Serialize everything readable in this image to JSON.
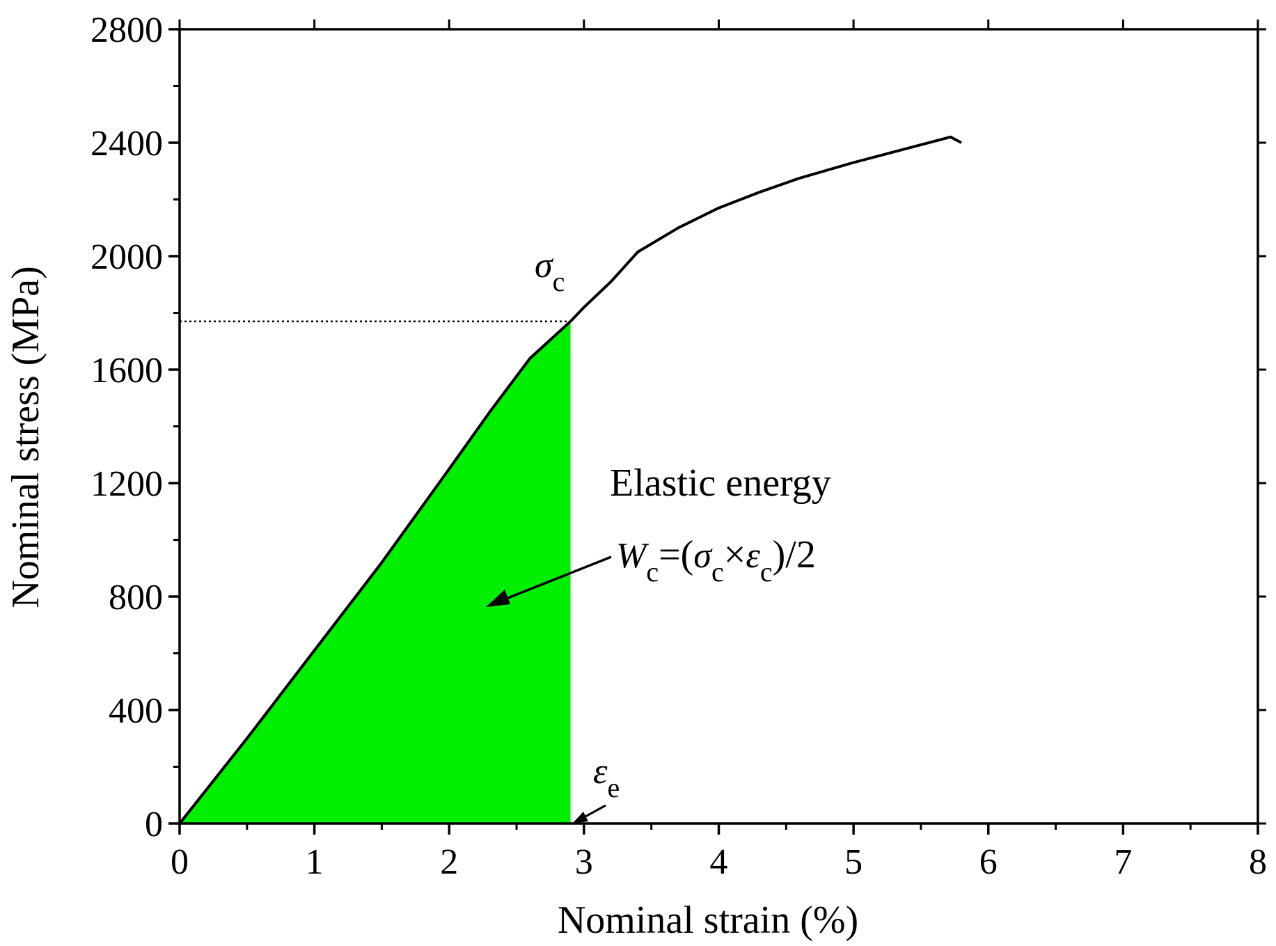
{
  "chart_data": {
    "type": "line",
    "title": "",
    "xlabel": "Nominal strain (%)",
    "ylabel": "Nominal stress (MPa)",
    "xlim": [
      0,
      8
    ],
    "ylim": [
      0,
      2800
    ],
    "x_ticks": [
      0,
      1,
      2,
      3,
      4,
      5,
      6,
      7,
      8
    ],
    "y_ticks": [
      0,
      400,
      800,
      1200,
      1600,
      2000,
      2400,
      2800
    ],
    "x_tick_labels": [
      "0",
      "1",
      "2",
      "3",
      "4",
      "5",
      "6",
      "7",
      "8"
    ],
    "y_tick_labels": [
      "0",
      "400",
      "800",
      "1200",
      "1600",
      "2000",
      "2400",
      "2800"
    ],
    "grid": false,
    "legend": "none",
    "series": [
      {
        "x": [
          0,
          0.5,
          1.0,
          1.5,
          2.0,
          2.3,
          2.6,
          2.9,
          3.0,
          3.2,
          3.4,
          3.7,
          4.0,
          4.3,
          4.6,
          5.0,
          5.4,
          5.72,
          5.8
        ],
        "y": [
          0,
          300,
          610,
          920,
          1250,
          1450,
          1640,
          1770,
          1820,
          1910,
          2015,
          2100,
          2170,
          2225,
          2275,
          2330,
          2380,
          2420,
          2400
        ],
        "color": "#000000"
      }
    ],
    "critical_point": {
      "x": 2.9,
      "y": 1770
    },
    "shaded_region": {
      "from_x": 0,
      "to_x": 2.9,
      "color": "#00ee00"
    },
    "annotations": {
      "elastic_energy_label": "Elastic energy",
      "sigma_symbol": "σ",
      "sigma_sub": "c",
      "epsilon_symbol": "ε",
      "epsilon_sub": "e",
      "formula": {
        "w": "W",
        "w_sub": "c",
        "open": "=(",
        "sigma": "σ",
        "sigma_sub": "c",
        "times": "×",
        "epsilon": "ε",
        "epsilon_sub": "c",
        "close": ")/2"
      }
    }
  }
}
